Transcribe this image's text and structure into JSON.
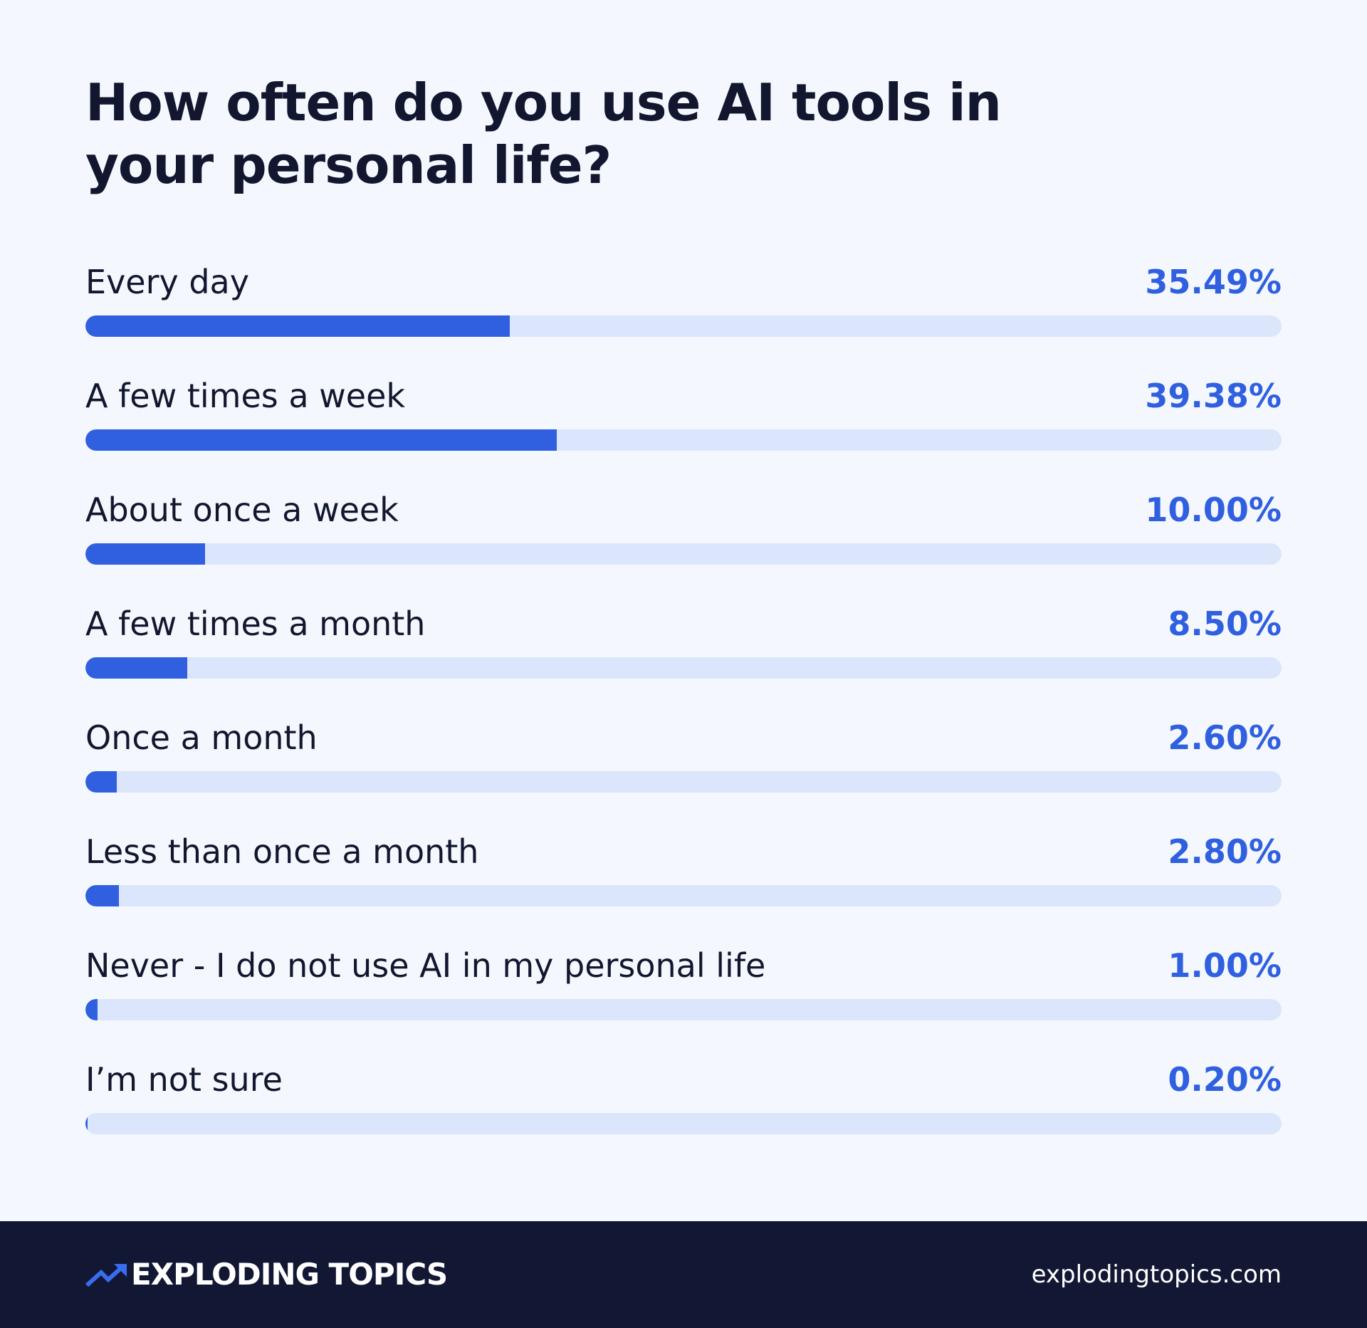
{
  "chart_data": {
    "type": "bar",
    "orientation": "horizontal",
    "title": "How often do you use AI tools in your personal life?",
    "xlim": [
      0,
      100
    ],
    "grid": false,
    "colors": {
      "fill": "#3060e0",
      "track": "#dbe6fc",
      "value_text": "#3060e0",
      "label_text": "#12172f"
    },
    "categories": [
      "Every day",
      "A few times a week",
      "About once a week",
      "A few times a month",
      "Once a month",
      "Less than once a month",
      "Never - I do not use AI in my personal life",
      "I’m not sure"
    ],
    "values": [
      35.49,
      39.38,
      10.0,
      8.5,
      2.6,
      2.8,
      1.0,
      0.2
    ],
    "value_labels": [
      "35.49%",
      "39.38%",
      "10.00%",
      "8.50%",
      "2.60%",
      "2.80%",
      "1.00%",
      "0.20%"
    ]
  },
  "footer": {
    "brand_icon": "trend-arrow-icon",
    "brand_name": "EXPLODING TOPICS",
    "url": "explodingtopics.com",
    "background_color": "#121734",
    "icon_color": "#3a6cf0"
  }
}
